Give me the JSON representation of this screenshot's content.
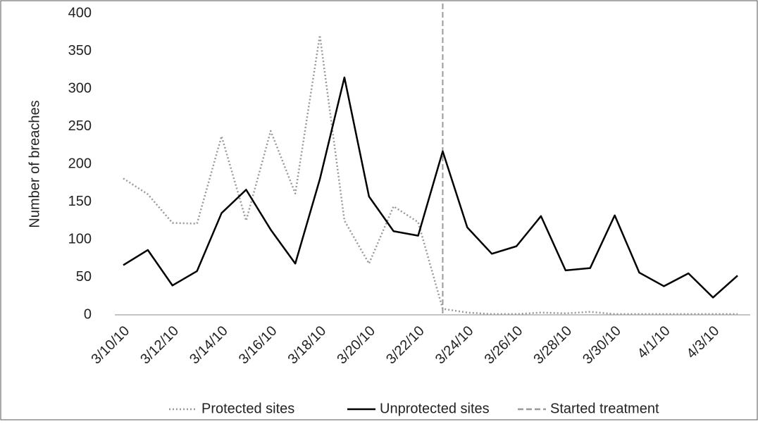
{
  "chart_data": {
    "type": "line",
    "ylabel": "Number of breaches",
    "categories": [
      "3/10/10",
      null,
      "3/12/10",
      null,
      "3/14/10",
      null,
      "3/16/10",
      null,
      "3/18/10",
      null,
      "3/20/10",
      null,
      "3/22/10",
      null,
      "3/24/10",
      null,
      "3/26/10",
      null,
      "3/28/10",
      null,
      "3/30/10",
      null,
      "4/1/10",
      null,
      "4/3/10",
      null
    ],
    "series": [
      {
        "name": "Protected sites",
        "color": "#999999",
        "dash": "dotted",
        "values": [
          181,
          160,
          122,
          121,
          237,
          125,
          244,
          161,
          371,
          125,
          68,
          144,
          123,
          8,
          3,
          1,
          1,
          3,
          2,
          4,
          1,
          1,
          1,
          1,
          1,
          1
        ]
      },
      {
        "name": "Unprotected sites",
        "color": "#000000",
        "dash": "solid",
        "values": [
          66,
          86,
          39,
          58,
          135,
          166,
          113,
          68,
          180,
          315,
          157,
          111,
          105,
          217,
          116,
          81,
          91,
          131,
          59,
          62,
          132,
          56,
          38,
          55,
          23,
          52
        ]
      }
    ],
    "vline": {
      "name": "Started treatment",
      "color": "#999999",
      "at": 13
    },
    "ylim": [
      0,
      400
    ],
    "yticks": [
      0,
      50,
      100,
      150,
      200,
      250,
      300,
      350,
      400
    ]
  }
}
